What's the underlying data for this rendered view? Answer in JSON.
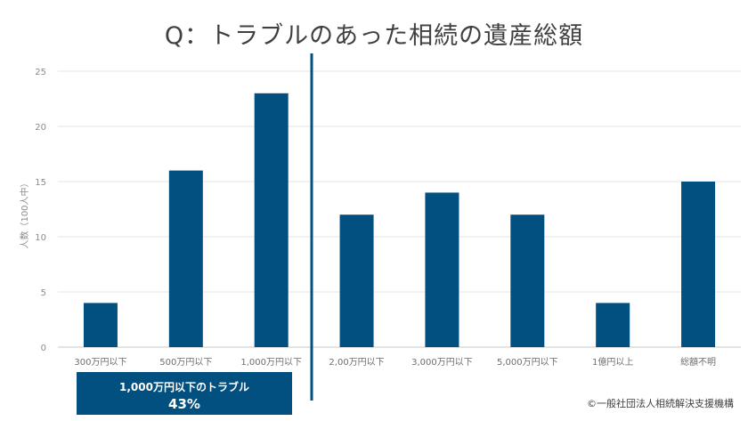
{
  "title": "Q：トラブルのあった相続の遺産総額",
  "chart_data": {
    "type": "bar",
    "ylabel": "人数（100人中）",
    "xlabel": "",
    "ylim": [
      0,
      25
    ],
    "yticks": [
      0,
      5,
      10,
      15,
      20,
      25
    ],
    "grid": true,
    "categories": [
      "300万円以下",
      "500万円以下",
      "1,000万円以下",
      "2,00万円以下",
      "3,000万円以下",
      "5,000万円以下",
      "1億円以上",
      "総額不明"
    ],
    "values": [
      4,
      16,
      23,
      12,
      14,
      12,
      4,
      15
    ],
    "bar_color": "#02507f",
    "divider_color": "#02507f"
  },
  "callout": {
    "line1": "1,000万円以下のトラブル",
    "line2": "43%"
  },
  "copyright": "©一般社団法人相続解決支援機構"
}
